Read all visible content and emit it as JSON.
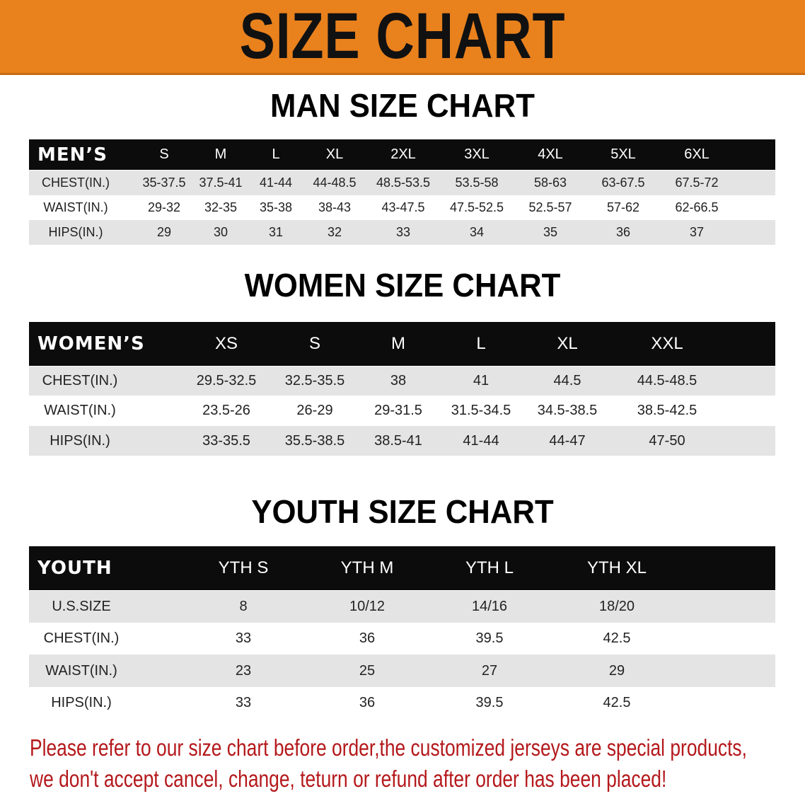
{
  "banner": {
    "title": "SIZE CHART",
    "color": "#e9811d"
  },
  "men": {
    "title": "MAN SIZE CHART",
    "headers": [
      "MEN’S",
      "S",
      "M",
      "L",
      "XL",
      "2XL",
      "3XL",
      "4XL",
      "5XL",
      "6XL"
    ],
    "rows": [
      [
        "CHEST(IN.)",
        "35-37.5",
        "37.5-41",
        "41-44",
        "44-48.5",
        "48.5-53.5",
        "53.5-58",
        "58-63",
        "63-67.5",
        "67.5-72"
      ],
      [
        "WAIST(IN.)",
        "29-32",
        "32-35",
        "35-38",
        "38-43",
        "43-47.5",
        "47.5-52.5",
        "52.5-57",
        "57-62",
        "62-66.5"
      ],
      [
        "HIPS(IN.)",
        "29",
        "30",
        "31",
        "32",
        "33",
        "34",
        "35",
        "36",
        "37"
      ]
    ]
  },
  "women": {
    "title": "WOMEN SIZE CHART",
    "headers": [
      "WOMEN’S",
      "XS",
      "S",
      "M",
      "L",
      "XL",
      "XXL"
    ],
    "rows": [
      [
        "CHEST(IN.)",
        "29.5-32.5",
        "32.5-35.5",
        "38",
        "41",
        "44.5",
        "44.5-48.5"
      ],
      [
        "WAIST(IN.)",
        "23.5-26",
        "26-29",
        "29-31.5",
        "31.5-34.5",
        "34.5-38.5",
        "38.5-42.5"
      ],
      [
        "HIPS(IN.)",
        "33-35.5",
        "35.5-38.5",
        "38.5-41",
        "41-44",
        "44-47",
        "47-50"
      ]
    ]
  },
  "youth": {
    "title": "YOUTH SIZE CHART",
    "headers": [
      "YOUTH",
      "YTH S",
      "YTH M",
      "YTH L",
      "YTH XL"
    ],
    "rows": [
      [
        "U.S.SIZE",
        "8",
        "10/12",
        "14/16",
        "18/20"
      ],
      [
        "CHEST(IN.)",
        "33",
        "36",
        "39.5",
        "42.5"
      ],
      [
        "WAIST(IN.)",
        "23",
        "25",
        "27",
        "29"
      ],
      [
        "HIPS(IN.)",
        "33",
        "36",
        "39.5",
        "42.5"
      ]
    ]
  },
  "notice": {
    "line1": "Please refer to our size chart before order,the customized jerseys are special products,",
    "line2": "we don't accept cancel, change, teturn or refund after order has been placed!",
    "color": "#b4191c"
  }
}
